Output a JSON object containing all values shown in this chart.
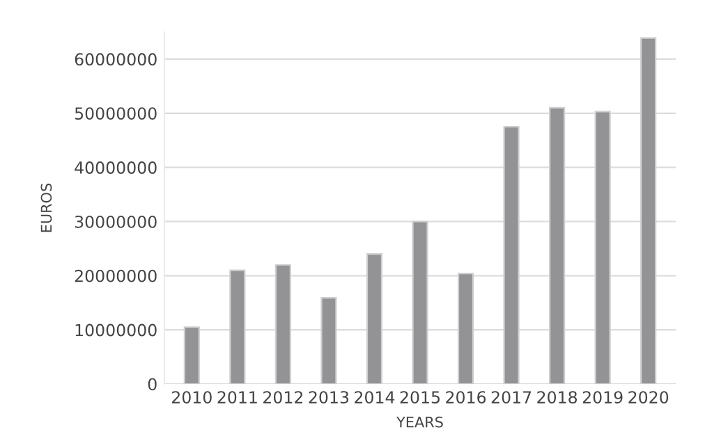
{
  "chart_data": {
    "type": "bar",
    "xlabel": "YEARS",
    "ylabel": "EUROS",
    "categories": [
      "2010",
      "2011",
      "2012",
      "2013",
      "2014",
      "2015",
      "2016",
      "2017",
      "2018",
      "2019",
      "2020"
    ],
    "values": [
      10500000,
      21000000,
      22000000,
      15900000,
      24000000,
      30000000,
      20400000,
      47500000,
      51000000,
      50300000,
      63900000
    ],
    "color": "#939396",
    "ylim": [
      0,
      65000000
    ],
    "yticks": [
      0,
      10000000,
      20000000,
      30000000,
      40000000,
      50000000,
      60000000
    ],
    "grid": "y"
  }
}
